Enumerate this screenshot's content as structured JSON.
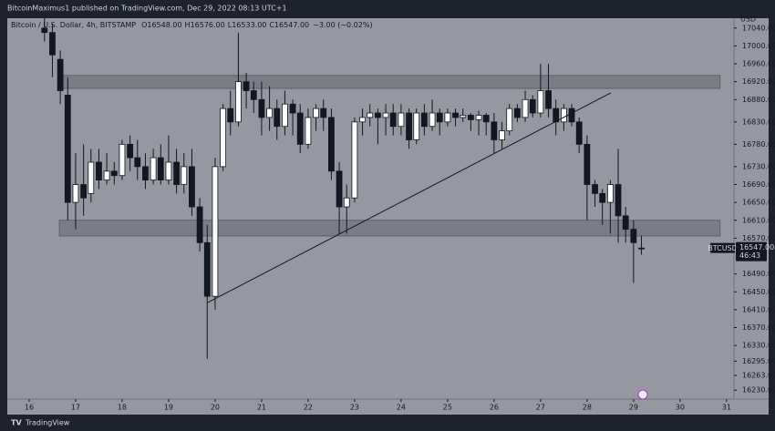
{
  "header": "BitcoinMaximus1 published on TradingView.com, Dec 29, 2022 08:13 UTC+1",
  "footer": "TradingView",
  "chart_data": {
    "type": "candlestick",
    "legend_text": "Bitcoin / U.S. Dollar, 4h, BITSTAMP",
    "ohlc_legend": [
      {
        "key": "O",
        "label": "16548.00"
      },
      {
        "key": "H",
        "label": "16576.00"
      },
      {
        "key": "L",
        "label": "16533.00"
      },
      {
        "key": "C",
        "label": "16547.00"
      }
    ],
    "change": "−3.00 (−0.02%)",
    "currency": "USD",
    "symbol_tag": "BTCUSD",
    "last_price": {
      "value": 16547,
      "label": "16547.00"
    },
    "countdown": "46:43",
    "x": [
      16.33,
      16.5,
      16.67,
      16.83,
      17,
      17.17,
      17.33,
      17.5,
      17.67,
      17.83,
      18,
      18.17,
      18.33,
      18.5,
      18.67,
      18.83,
      19,
      19.17,
      19.33,
      19.5,
      19.67,
      19.83,
      20,
      20.17,
      20.33,
      20.5,
      20.67,
      20.83,
      21,
      21.17,
      21.33,
      21.5,
      21.67,
      21.83,
      22,
      22.17,
      22.33,
      22.5,
      22.67,
      22.83,
      23,
      23.17,
      23.33,
      23.5,
      23.67,
      23.83,
      24,
      24.17,
      24.33,
      24.5,
      24.67,
      24.83,
      25,
      25.17,
      25.33,
      25.5,
      25.67,
      25.83,
      26,
      26.17,
      26.33,
      26.5,
      26.67,
      26.83,
      27,
      27.17,
      27.33,
      27.5,
      27.67,
      27.83,
      28,
      28.17,
      28.33,
      28.5,
      28.67,
      28.83,
      29,
      29.17
    ],
    "open": [
      17040,
      17030,
      16970,
      16890,
      16650,
      16690,
      16670,
      16740,
      16700,
      16720,
      16710,
      16780,
      16750,
      16730,
      16700,
      16750,
      16700,
      16740,
      16690,
      16730,
      16640,
      16560,
      16440,
      16730,
      16860,
      16830,
      16920,
      16900,
      16880,
      16840,
      16860,
      16820,
      16870,
      16850,
      16780,
      16840,
      16860,
      16840,
      16720,
      16640,
      16660,
      16830,
      16840,
      16850,
      16840,
      16850,
      16820,
      16850,
      16790,
      16850,
      16820,
      16850,
      16830,
      16850,
      16840,
      16845,
      16835,
      16845,
      16830,
      16790,
      16810,
      16860,
      16840,
      16880,
      16850,
      16900,
      16860,
      16830,
      16860,
      16830,
      16780,
      16690,
      16670,
      16650,
      16690,
      16620,
      16590,
      16548
    ],
    "high": [
      17062,
      17050,
      16990,
      16930,
      16760,
      16780,
      16770,
      16770,
      16760,
      16740,
      16790,
      16800,
      16790,
      16760,
      16770,
      16780,
      16800,
      16770,
      16760,
      16770,
      16660,
      16600,
      16750,
      16870,
      16900,
      17030,
      16940,
      16920,
      16920,
      16910,
      16880,
      16900,
      16880,
      16870,
      16860,
      16870,
      16880,
      16860,
      16740,
      16690,
      16840,
      16860,
      16870,
      16860,
      16870,
      16870,
      16870,
      16860,
      16860,
      16870,
      16880,
      16860,
      16860,
      16860,
      16860,
      16850,
      16855,
      16850,
      16850,
      16830,
      16870,
      16870,
      16900,
      16890,
      16960,
      16960,
      16880,
      16870,
      16870,
      16840,
      16800,
      16700,
      16680,
      16700,
      16770,
      16640,
      16610,
      16576
    ],
    "low": [
      17010,
      16930,
      16870,
      16610,
      16590,
      16620,
      16650,
      16680,
      16690,
      16690,
      16700,
      16720,
      16700,
      16680,
      16690,
      16690,
      16690,
      16670,
      16670,
      16620,
      16540,
      16300,
      16410,
      16720,
      16800,
      16820,
      16860,
      16850,
      16800,
      16810,
      16790,
      16800,
      16800,
      16760,
      16770,
      16810,
      16810,
      16700,
      16580,
      16580,
      16650,
      16800,
      16820,
      16780,
      16800,
      16800,
      16800,
      16770,
      16780,
      16800,
      16810,
      16800,
      16820,
      16820,
      16830,
      16810,
      16800,
      16800,
      16760,
      16770,
      16800,
      16830,
      16830,
      16840,
      16840,
      16840,
      16800,
      16810,
      16820,
      16760,
      16610,
      16640,
      16600,
      16580,
      16560,
      16560,
      16470,
      16533
    ],
    "close": [
      17030,
      16980,
      16900,
      16650,
      16690,
      16660,
      16740,
      16700,
      16720,
      16710,
      16780,
      16750,
      16730,
      16700,
      16750,
      16700,
      16740,
      16690,
      16730,
      16640,
      16560,
      16440,
      16730,
      16860,
      16830,
      16920,
      16900,
      16880,
      16840,
      16860,
      16820,
      16870,
      16850,
      16780,
      16840,
      16860,
      16840,
      16720,
      16640,
      16660,
      16830,
      16840,
      16850,
      16840,
      16850,
      16820,
      16850,
      16790,
      16850,
      16820,
      16850,
      16830,
      16850,
      16840,
      16845,
      16835,
      16845,
      16830,
      16790,
      16810,
      16860,
      16840,
      16880,
      16850,
      16900,
      16860,
      16830,
      16860,
      16830,
      16780,
      16690,
      16670,
      16650,
      16690,
      16620,
      16590,
      16560,
      16547
    ],
    "up_color": "#ffffff",
    "down_color": "#131722",
    "bands": [
      {
        "x": [
          16.65,
          30.86
        ],
        "y": [
          16905,
          16934
        ]
      },
      {
        "x": [
          16.65,
          30.86
        ],
        "y": [
          16575,
          16610
        ]
      }
    ],
    "trendline": {
      "x": [
        19.84,
        28.51
      ],
      "y": [
        16426,
        16895
      ]
    },
    "xlim": [
      15.53,
      31.16
    ],
    "xticks": [
      16,
      17,
      18,
      19,
      20,
      21,
      22,
      23,
      24,
      25,
      26,
      27,
      28,
      29,
      30,
      31
    ],
    "ylim": [
      16210,
      17062
    ],
    "yticks": [
      {
        "value": 17040,
        "label": "17040.00"
      },
      {
        "value": 17000,
        "label": "17000.00"
      },
      {
        "value": 16960,
        "label": "16960.00"
      },
      {
        "value": 16920,
        "label": "16920.00"
      },
      {
        "value": 16880,
        "label": "16880.00"
      },
      {
        "value": 16830,
        "label": "16830.00"
      },
      {
        "value": 16780,
        "label": "16780.00"
      },
      {
        "value": 16730,
        "label": "16730.00"
      },
      {
        "value": 16690,
        "label": "16690.00"
      },
      {
        "value": 16650,
        "label": "16650.00"
      },
      {
        "value": 16610,
        "label": "16610.00"
      },
      {
        "value": 16570,
        "label": "16570.00"
      },
      {
        "value": 16490,
        "label": "16490.00"
      },
      {
        "value": 16450,
        "label": "16450.00"
      },
      {
        "value": 16410,
        "label": "16410.00"
      },
      {
        "value": 16370,
        "label": "16370.00"
      },
      {
        "value": 16330,
        "label": "16330.00"
      },
      {
        "value": 16295,
        "label": "16295.00"
      },
      {
        "value": 16263,
        "label": "16263.00"
      },
      {
        "value": 16230,
        "label": "16230.00"
      }
    ]
  }
}
